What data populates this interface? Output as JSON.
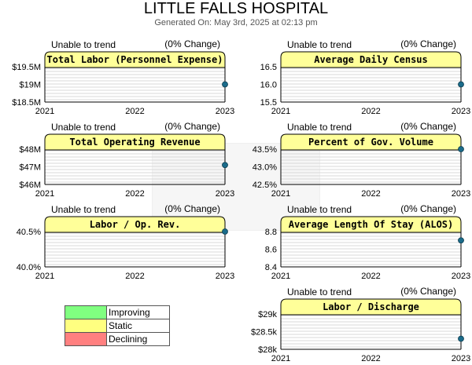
{
  "report": {
    "title": "LITTLE FALLS HOSPITAL",
    "generated": "Generated On: May 3rd, 2025 at 02:13 pm"
  },
  "colors": {
    "header_fill": "#ffff99",
    "improving": "#80ff80",
    "static": "#ffff80",
    "declining": "#ff8080",
    "dot": "#1a6b8a"
  },
  "legend": [
    {
      "label": "Improving",
      "color": "#80ff80"
    },
    {
      "label": "Static",
      "color": "#ffff80"
    },
    {
      "label": "Declining",
      "color": "#ff8080"
    }
  ],
  "chart_data": [
    {
      "type": "scatter",
      "title": "Total Labor (Personnel Expense)",
      "trend": "Unable to trend",
      "change": "(0% Change)",
      "x_ticks": [
        "2021",
        "2022",
        "2023"
      ],
      "y_ticks": [
        "$19.5M",
        "$19M",
        "$18.5M"
      ],
      "ylim": [
        18.5,
        19.5
      ],
      "points": [
        {
          "x": "2023",
          "y": 19.0
        }
      ],
      "grid": true
    },
    {
      "type": "scatter",
      "title": "Average Daily Census",
      "trend": "Unable to trend",
      "change": "(0% Change)",
      "x_ticks": [
        "2021",
        "2022",
        "2023"
      ],
      "y_ticks": [
        "16.5",
        "16.0",
        "15.5"
      ],
      "ylim": [
        15.5,
        16.5
      ],
      "points": [
        {
          "x": "2023",
          "y": 16.0
        }
      ],
      "grid": true
    },
    {
      "type": "scatter",
      "title": "Total Operating Revenue",
      "trend": "Unable to trend",
      "change": "(0% Change)",
      "x_ticks": [
        "2021",
        "2022",
        "2023"
      ],
      "y_ticks": [
        "$48M",
        "$47M",
        "$46M"
      ],
      "ylim": [
        46,
        48
      ],
      "points": [
        {
          "x": "2023",
          "y": 47.1
        }
      ],
      "grid": true
    },
    {
      "type": "scatter",
      "title": "Percent of Gov. Volume",
      "trend": "Unable to trend",
      "change": "(0% Change)",
      "x_ticks": [
        "2021",
        "2022",
        "2023"
      ],
      "y_ticks": [
        "43.5%",
        "43.0%",
        "42.5%"
      ],
      "ylim": [
        42.5,
        43.5
      ],
      "points": [
        {
          "x": "2023",
          "y": 43.5
        }
      ],
      "grid": true
    },
    {
      "type": "scatter",
      "title": "Labor / Op. Rev.",
      "trend": "Unable to trend",
      "change": "(0% Change)",
      "x_ticks": [
        "2021",
        "2022",
        "2023"
      ],
      "y_ticks": [
        "40.5%",
        "40.0%"
      ],
      "ylim": [
        40.0,
        40.5
      ],
      "points": [
        {
          "x": "2023",
          "y": 40.5
        }
      ],
      "grid": true
    },
    {
      "type": "scatter",
      "title": "Average Length Of Stay (ALOS)",
      "trend": "Unable to trend",
      "change": "(0% Change)",
      "x_ticks": [
        "2021",
        "2022",
        "2023"
      ],
      "y_ticks": [
        "8.8",
        "8.6",
        "8.4"
      ],
      "ylim": [
        8.4,
        8.8
      ],
      "points": [
        {
          "x": "2023",
          "y": 8.7
        }
      ],
      "grid": true
    },
    {
      "type": "scatter",
      "title": "Labor / Discharge",
      "trend": "Unable to trend",
      "change": "(0% Change)",
      "x_ticks": [
        "2021",
        "2022",
        "2023"
      ],
      "y_ticks": [
        "$29k",
        "$28.5k",
        "$28k"
      ],
      "ylim": [
        28,
        29
      ],
      "points": [
        {
          "x": "2023",
          "y": 28.3
        }
      ],
      "grid": true
    }
  ]
}
